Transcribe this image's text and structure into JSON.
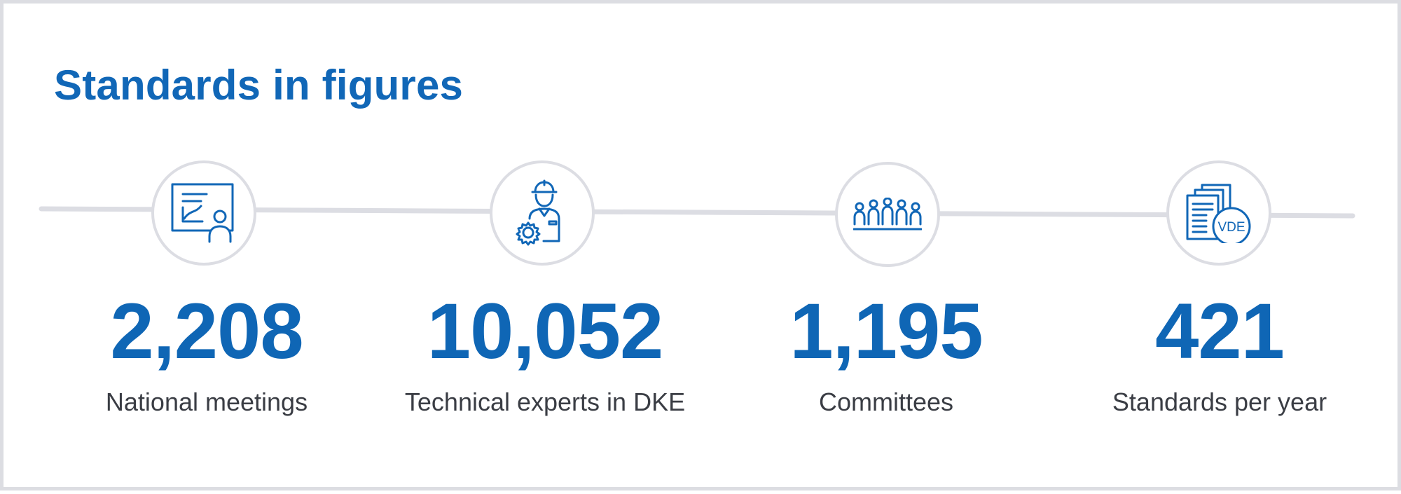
{
  "header": {
    "title": "Standards in figures"
  },
  "colors": {
    "accent": "#1167b7",
    "line": "#dcdde3",
    "text": "#3a3d44"
  },
  "stats": [
    {
      "value": "2,208",
      "label": "National meetings",
      "icon": "presentation-icon"
    },
    {
      "value": "10,052",
      "label": "Technical experts in DKE",
      "icon": "engineer-gear-icon"
    },
    {
      "value": "1,195",
      "label": "Committees",
      "icon": "committee-group-icon"
    },
    {
      "value": "421",
      "label": "Standards per year",
      "icon": "vde-documents-icon"
    }
  ],
  "icon_text": {
    "vde_badge": "VDE"
  }
}
